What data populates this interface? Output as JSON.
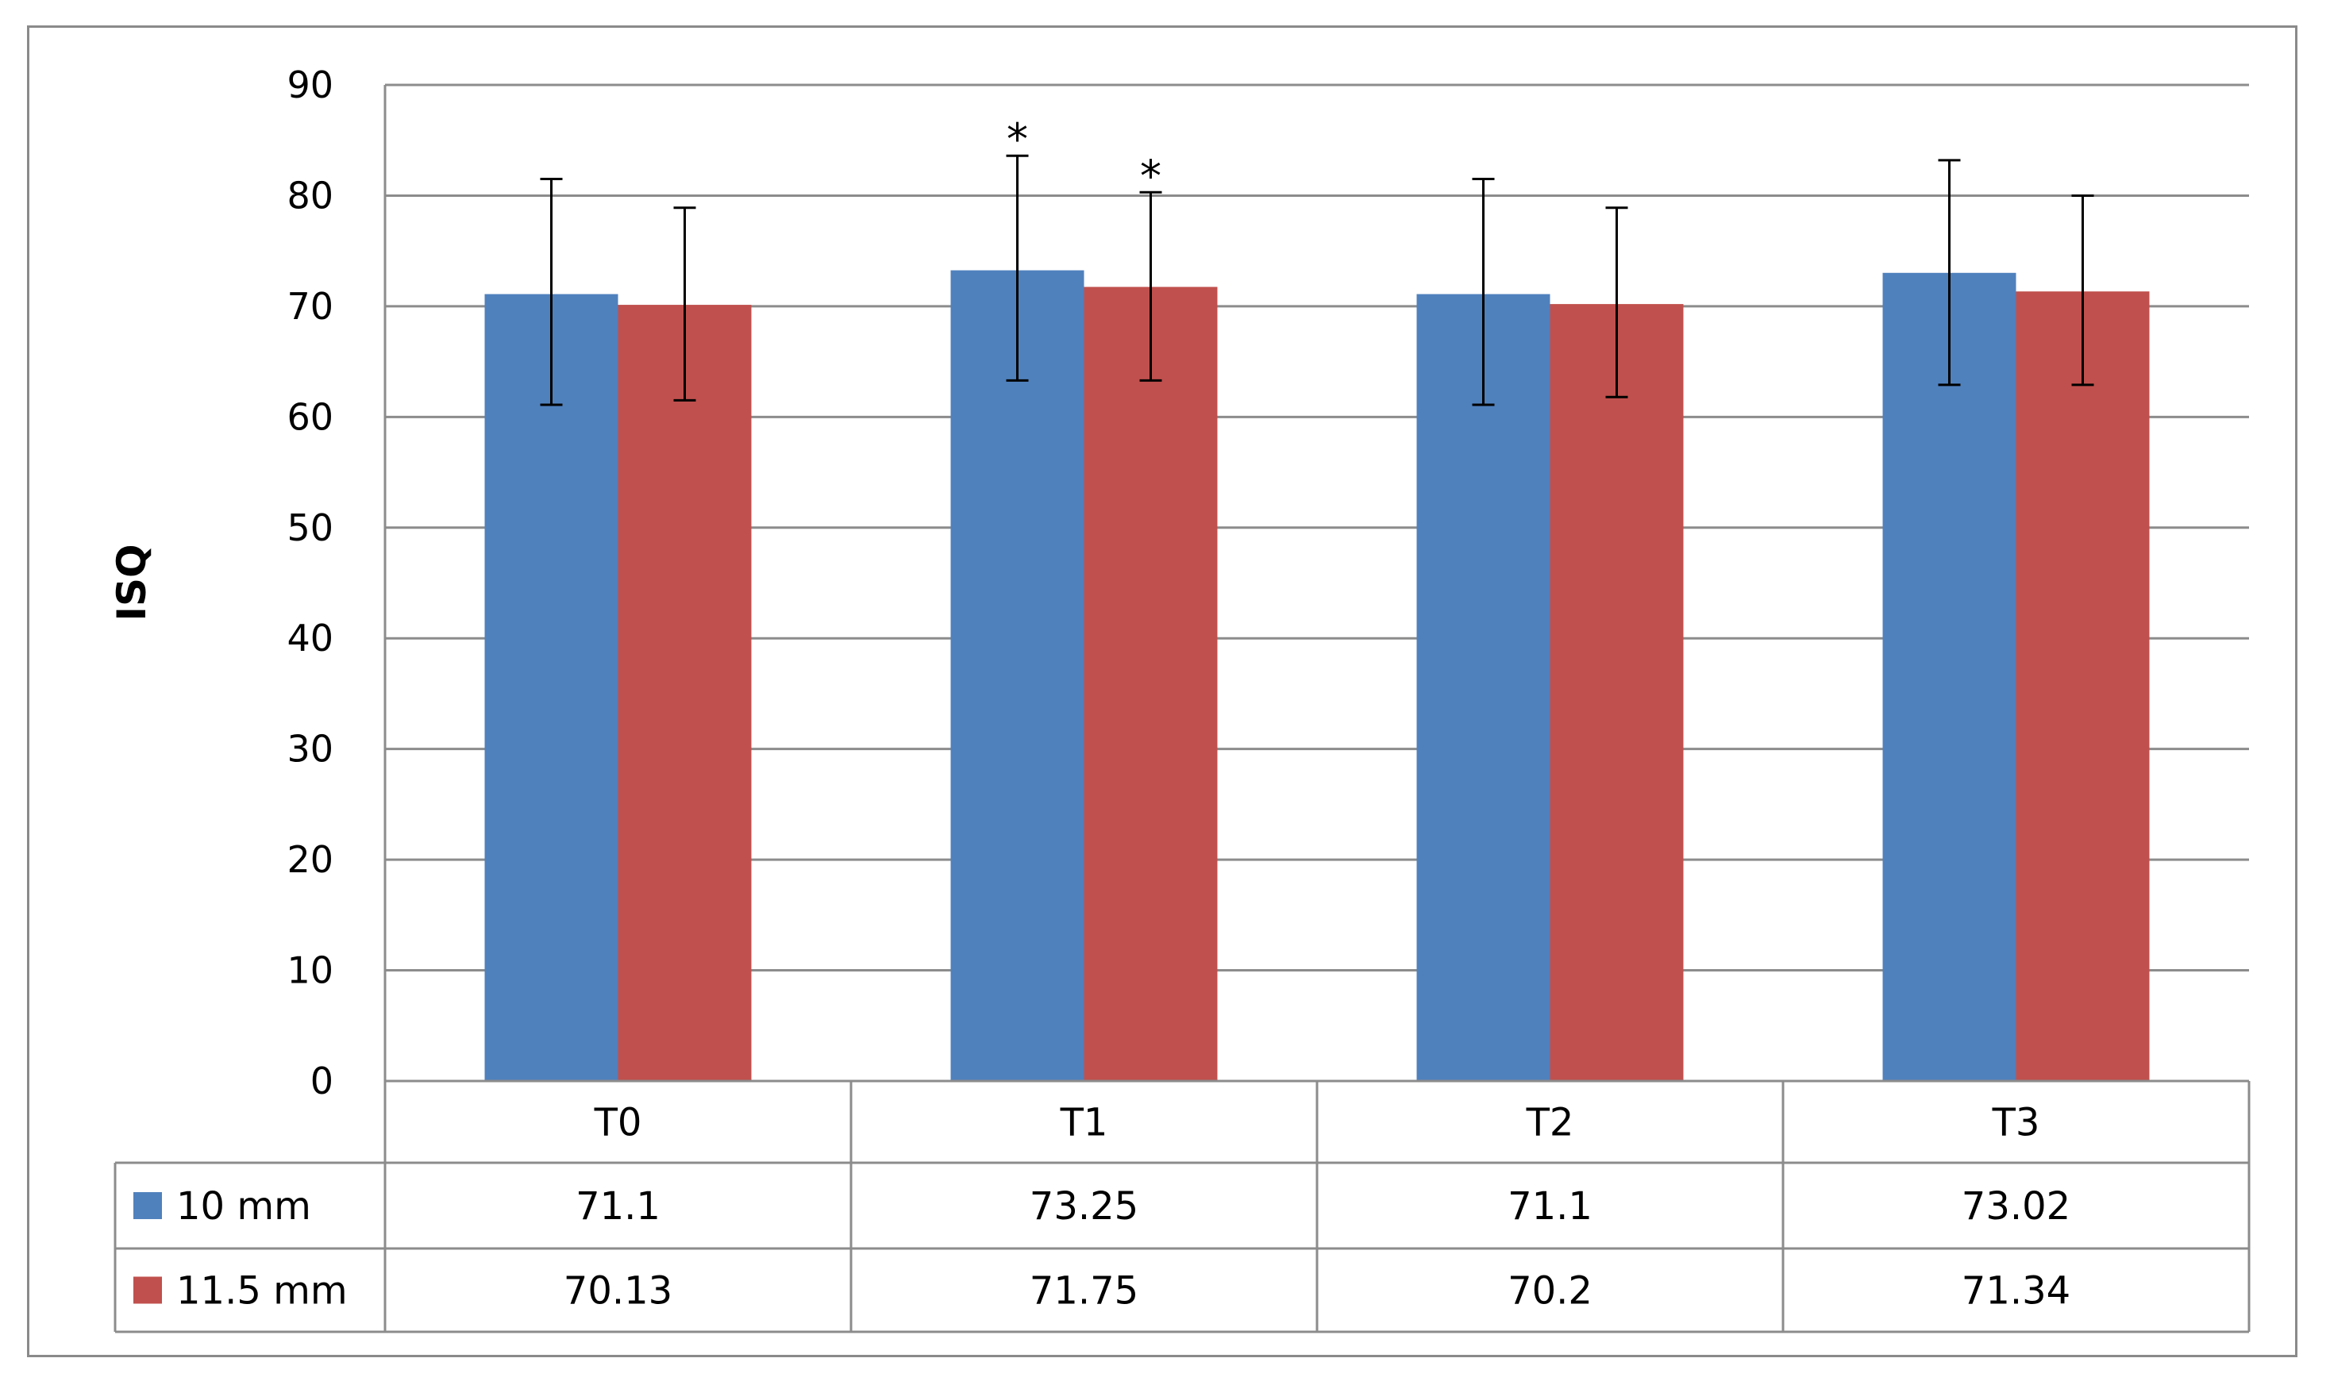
{
  "chart_data": {
    "type": "bar",
    "ylabel": "ISQ",
    "ylim": [
      0,
      90
    ],
    "yticks": [
      0,
      10,
      20,
      30,
      40,
      50,
      60,
      70,
      80,
      90
    ],
    "ytick_labels": [
      "0",
      "10",
      "20",
      "30",
      "40",
      "50",
      "60",
      "70",
      "80",
      "90"
    ],
    "grid": true,
    "legend_placement": "data-table-left",
    "categories": [
      "T0",
      "T1",
      "T2",
      "T3"
    ],
    "series": [
      {
        "name": "10 mm",
        "color": "#4F81BD",
        "values": [
          71.1,
          73.25,
          71.1,
          73.02
        ],
        "value_labels": [
          "71.1",
          "73.25",
          "71.1",
          "73.02"
        ],
        "error_low": [
          61.1,
          63.3,
          61.1,
          62.9
        ],
        "error_high": [
          81.5,
          83.6,
          81.5,
          83.2
        ],
        "markers": [
          "",
          "*",
          "",
          ""
        ]
      },
      {
        "name": "11.5 mm",
        "color": "#C0504D",
        "values": [
          70.13,
          71.75,
          70.2,
          71.34
        ],
        "value_labels": [
          "70.13",
          "71.75",
          "70.2",
          "71.34"
        ],
        "error_low": [
          61.5,
          63.3,
          61.8,
          62.9
        ],
        "error_high": [
          78.9,
          80.3,
          78.9,
          80.0
        ],
        "markers": [
          "",
          "*",
          "",
          ""
        ]
      }
    ]
  }
}
